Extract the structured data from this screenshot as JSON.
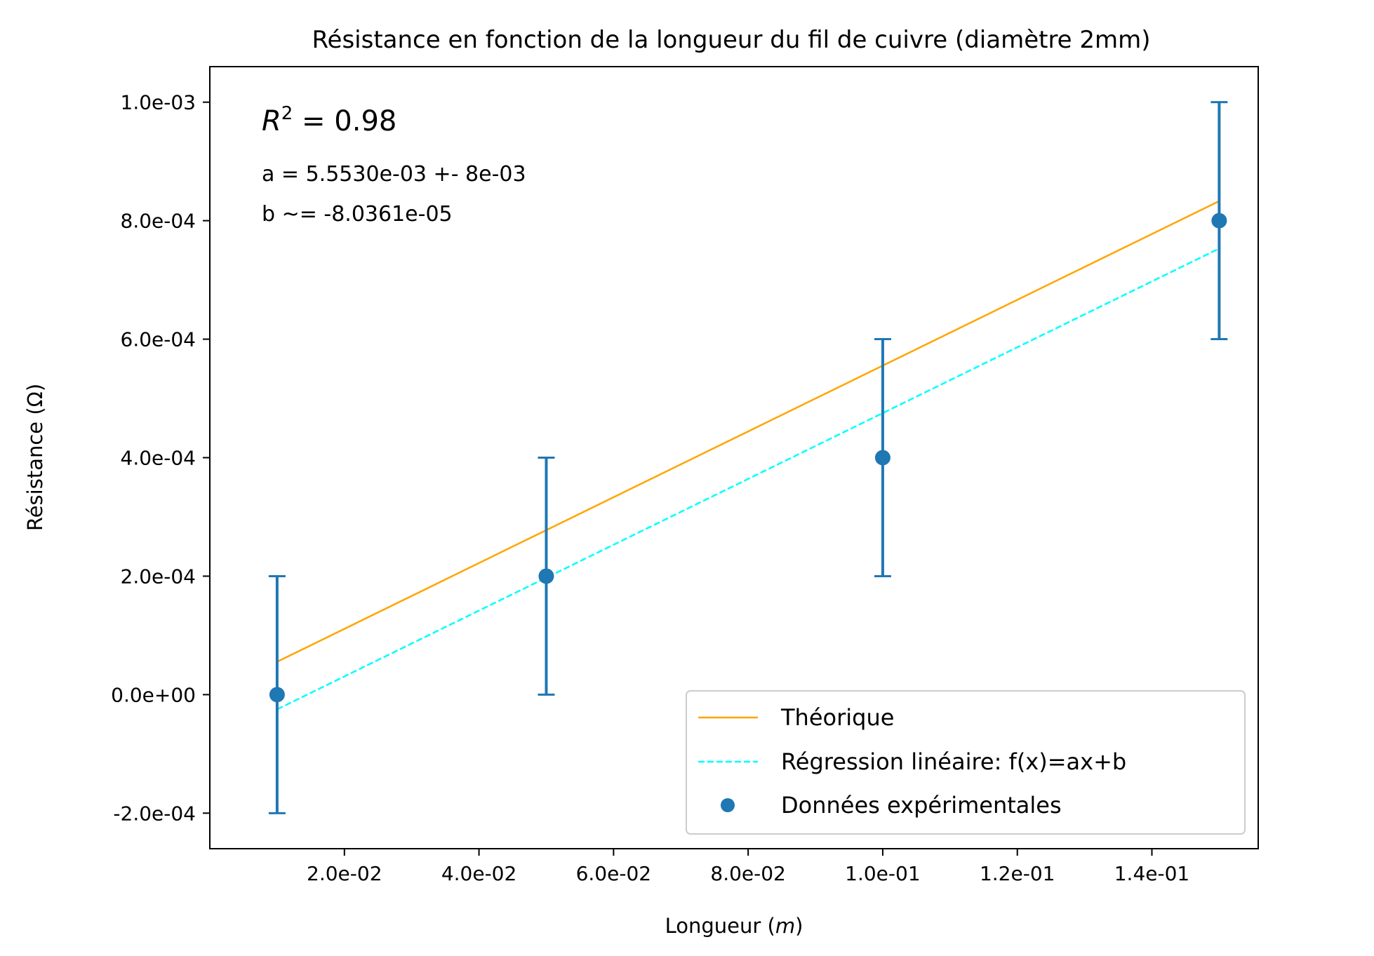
{
  "chart_data": {
    "type": "scatter",
    "title": "Résistance en fonction de la longueur du fil de cuivre (diamètre  2mm)",
    "xlabel": "Longueur (m)",
    "xlabel_text": "Longueur (",
    "xlabel_unit": "m",
    "xlabel_close": ")",
    "ylabel": "Résistance (Ω)",
    "xlim": [
      -0.0,
      0.1558
    ],
    "ylim": [
      -0.00026,
      0.00106
    ],
    "x_ticks": [
      0.02,
      0.04,
      0.06,
      0.08,
      0.1,
      0.12,
      0.14
    ],
    "x_tick_labels": [
      "2.0e-02",
      "4.0e-02",
      "6.0e-02",
      "8.0e-02",
      "1.0e-01",
      "1.2e-01",
      "1.4e-01"
    ],
    "y_ticks": [
      -0.0002,
      0.0,
      0.0002,
      0.0004,
      0.0006,
      0.0008,
      0.001
    ],
    "y_tick_labels": [
      "-2.0e-04",
      "0.0e+00",
      "2.0e-04",
      "4.0e-04",
      "6.0e-04",
      "8.0e-04",
      "1.0e-03"
    ],
    "grid": false,
    "legend_position": "bottom-right",
    "series": [
      {
        "name": "Théorique",
        "kind": "line",
        "style": "solid",
        "color": "#FFA500",
        "x": [
          0.01,
          0.15
        ],
        "y": [
          5.55e-05,
          0.000833
        ]
      },
      {
        "name": "Régression linéaire: f(x)=ax+b",
        "kind": "line",
        "style": "dashed",
        "color": "#00FFFF",
        "x": [
          0.01,
          0.15
        ],
        "y": [
          -2.48e-05,
          0.000753
        ]
      },
      {
        "name": "Données expérimentales",
        "kind": "scatter",
        "color": "#1f77b4",
        "x": [
          0.01,
          0.05,
          0.1,
          0.15
        ],
        "y": [
          0.0,
          0.0002,
          0.0004,
          0.0008
        ],
        "yerr": [
          0.0002,
          0.0002,
          0.0002,
          0.0002
        ]
      }
    ],
    "annotations": {
      "r2_base": "R",
      "r2_exp": "2",
      "r2_value": " = 0.98",
      "a_text": "a = 5.5530e-03 +- 8e-03",
      "b_text": "b ~= -8.0361e-05"
    }
  }
}
